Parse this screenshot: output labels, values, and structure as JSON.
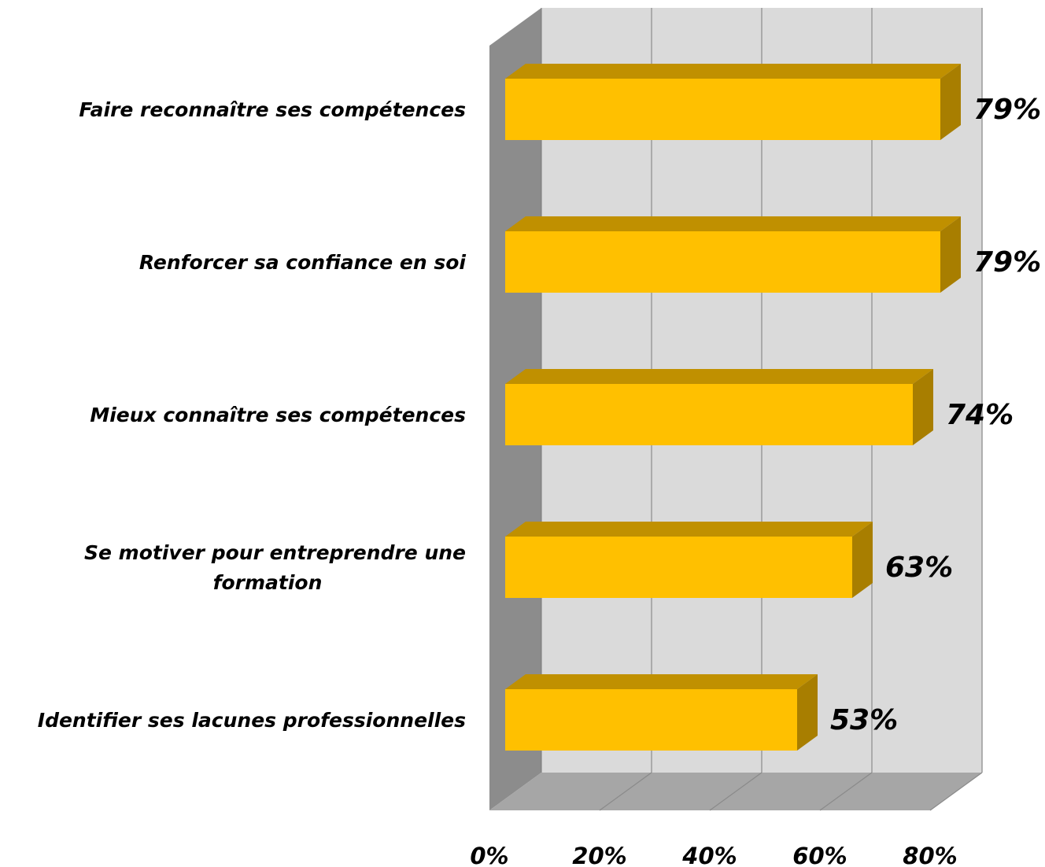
{
  "chart_data": {
    "type": "bar",
    "orientation": "horizontal",
    "style": "3d",
    "categories": [
      "Faire reconnaître ses compétences",
      "Renforcer sa confiance en soi",
      "Mieux connaître ses compétences",
      "Se motiver pour entreprendre une formation",
      "Identifier ses lacunes professionnelles"
    ],
    "category_lines": [
      [
        "Faire reconnaître ses compétences"
      ],
      [
        "Renforcer sa confiance en soi"
      ],
      [
        "Mieux connaître ses compétences"
      ],
      [
        "Se motiver pour entreprendre une",
        "formation"
      ],
      [
        "Identifier ses lacunes professionnelles"
      ]
    ],
    "values": [
      79,
      79,
      74,
      63,
      53
    ],
    "data_labels": [
      "79%",
      "79%",
      "74%",
      "63%",
      "53%"
    ],
    "xlim": [
      0,
      80
    ],
    "x_ticks": [
      0,
      20,
      40,
      60,
      80
    ],
    "x_tick_labels": [
      "0%",
      "20%",
      "40%",
      "60%",
      "80%"
    ],
    "grid": true,
    "legend": "none",
    "colors": {
      "bar_front": "#FFC000",
      "bar_top": "#C09000",
      "bar_side": "#A87E00",
      "back_wall": "#DADADA",
      "side_wall": "#8C8C8C",
      "floor": "#A6A6A6",
      "gridline": "#999999"
    }
  }
}
